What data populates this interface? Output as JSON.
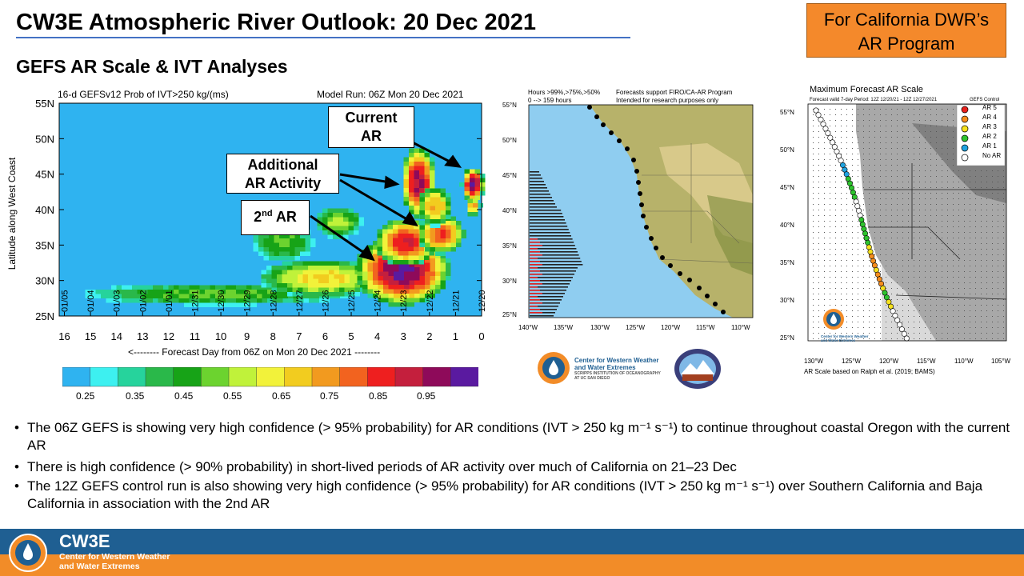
{
  "slide": {
    "title": "CW3E Atmospheric River Outlook: 20 Dec 2021",
    "subtitle": "GEFS AR Scale & IVT Analyses",
    "dwr_box": [
      "For California DWR’s",
      "AR Program"
    ]
  },
  "left_plot": {
    "header_left": "16-d GEFSv12 Prob of IVT>250 kg/(ms)",
    "header_right": "Model Run: 06Z Mon 20 Dec 2021",
    "ylabel": "Latitude along West Coast",
    "xlabel": "<-------- Forecast Day from 06Z on Mon 20 Dec 2021 --------",
    "lat_ticks": [
      "55N",
      "50N",
      "45N",
      "40N",
      "35N",
      "30N",
      "25N"
    ],
    "day_ticks": [
      "16",
      "15",
      "14",
      "13",
      "12",
      "11",
      "10",
      "9",
      "8",
      "7",
      "6",
      "5",
      "4",
      "3",
      "2",
      "1",
      "0"
    ],
    "date_labels": [
      "01/05",
      "01/04",
      "01/03",
      "01/02",
      "01/01",
      "12/31",
      "12/30",
      "12/29",
      "12/28",
      "12/27",
      "12/26",
      "12/25",
      "12/24",
      "12/23",
      "12/22",
      "12/21",
      "12/20"
    ],
    "callouts": {
      "current": [
        "Current",
        "AR"
      ],
      "additional": [
        "Additional",
        "AR Activity"
      ],
      "second": "2",
      "second_sup": "nd",
      "second_tail": " AR"
    },
    "colorbar_labels": [
      "0.25",
      "0.35",
      "0.45",
      "0.55",
      "0.65",
      "0.75",
      "0.85",
      "0.95"
    ],
    "colorbar_colors": [
      "#2fb3f0",
      "#3df0f0",
      "#26d39c",
      "#2ab84a",
      "#17a317",
      "#6cd32f",
      "#c0f23a",
      "#f2f23a",
      "#f2cc1f",
      "#f29a1f",
      "#f2631f",
      "#ee1f1f",
      "#c41f3d",
      "#8e0a5a",
      "#5a1aa0"
    ]
  },
  "mid_map": {
    "header_left": [
      "Hours >99%,>75%,>50%",
      "0 --> 159 hours"
    ],
    "header_right": [
      "Forecasts support FIRO/CA-AR Program",
      "Intended for research purposes only"
    ],
    "lat_ticks": [
      "55°N",
      "50°N",
      "45°N",
      "40°N",
      "35°N",
      "30°N",
      "25°N"
    ],
    "lon_ticks": [
      "140°W",
      "135°W",
      "130°W",
      "125°W",
      "120°W",
      "115°W",
      "110°W"
    ],
    "logo_text": [
      "Center for Western Weather",
      "and Water Extremes",
      "SCRIPPS INSTITUTION OF OCEANOGRAPHY",
      "AT UC SAN DIEGO"
    ]
  },
  "right_map": {
    "title": "Maximum Forecast AR Scale",
    "subtitle": "Forecast valid 7-day Period: 12Z 12/20/21 - 12Z 12/27/2021",
    "legend_title": "GEFS Control",
    "legend": [
      {
        "label": "AR 5",
        "color": "#e8211c"
      },
      {
        "label": "AR 4",
        "color": "#f58d1e"
      },
      {
        "label": "AR 3",
        "color": "#f5e11e"
      },
      {
        "label": "AR 2",
        "color": "#2ec42e"
      },
      {
        "label": "AR 1",
        "color": "#1fa3e0"
      },
      {
        "label": "No AR",
        "color": "#ffffff"
      }
    ],
    "lat_ticks": [
      "55°N",
      "50°N",
      "45°N",
      "40°N",
      "35°N",
      "30°N",
      "25°N"
    ],
    "lon_ticks": [
      "130°W",
      "125°W",
      "120°W",
      "115°W",
      "110°W",
      "105°W"
    ],
    "footnote": "AR Scale based on Ralph et al. (2019; BAMS)",
    "logo_text": [
      "Center for Western Weather",
      "and Water Extremes"
    ]
  },
  "bullets": [
    "The 06Z GEFS is showing very high confidence (> 95% probability) for AR conditions (IVT > 250 kg m⁻¹ s⁻¹) to continue throughout  coastal Oregon with the current AR",
    "There is high confidence (> 90% probability) in short-lived periods of AR activity over much of California on 21–23 Dec",
    "The 12Z GEFS control run is also showing very high confidence (> 95% probability) for AR conditions (IVT > 250 kg m⁻¹ s⁻¹) over Southern California and Baja California in association with the 2nd AR"
  ],
  "footer": {
    "logo": "CW3E",
    "sub": [
      "Center for Western Weather",
      "and Water Extremes"
    ]
  }
}
